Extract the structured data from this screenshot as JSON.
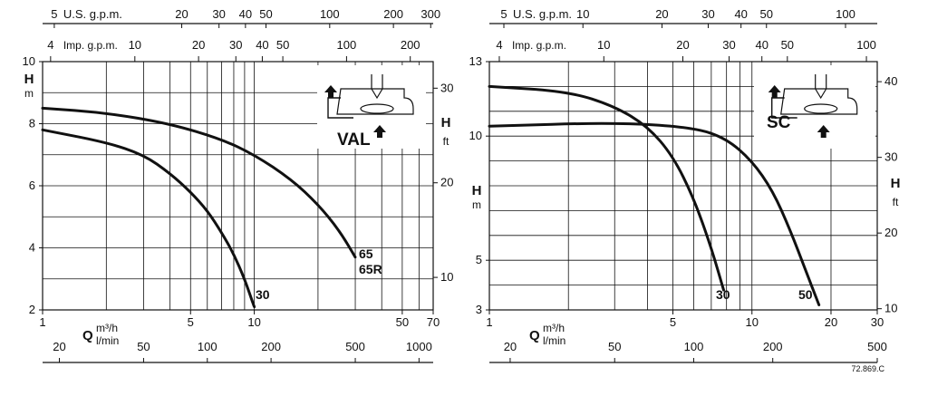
{
  "code": "72.869.C",
  "chart_data": [
    {
      "type": "line",
      "model_label": "VAL",
      "x": {
        "label": "Q",
        "unit": "m³/h",
        "scale": "log",
        "lim": [
          1,
          70
        ],
        "ticks": [
          1,
          5,
          10,
          50,
          70
        ],
        "grid": [
          2,
          3,
          4,
          5,
          6,
          7,
          8,
          9,
          10,
          20,
          30,
          40,
          50,
          60,
          70
        ]
      },
      "y_left": {
        "label": "H",
        "unit": "m",
        "lim": [
          2,
          10
        ],
        "ticks": [
          2,
          4,
          6,
          8,
          10
        ],
        "grid": [
          3,
          4,
          5,
          6,
          7,
          8,
          9
        ]
      },
      "y_right": {
        "label": "H",
        "unit": "ft",
        "ticks": [
          10,
          20,
          30
        ],
        "tick_values_m": [
          3.048,
          6.096,
          9.144
        ]
      },
      "top_scales": [
        {
          "label": "U.S. g.p.m.",
          "ticks": [
            5,
            20,
            30,
            40,
            50,
            100,
            200,
            300
          ],
          "tick_values_m3h": [
            1.1356,
            4.5425,
            6.8137,
            9.085,
            11.356,
            22.712,
            45.425,
            68.137
          ]
        },
        {
          "label": "Imp. g.p.m.",
          "ticks": [
            4,
            10,
            20,
            30,
            40,
            50,
            100,
            200
          ],
          "tick_values_m3h": [
            1.091,
            2.728,
            5.455,
            8.183,
            10.91,
            13.64,
            27.28,
            54.55
          ]
        }
      ],
      "bottom_scale": {
        "label": "l/min",
        "ticks": [
          20,
          50,
          100,
          200,
          500,
          1000
        ],
        "tick_values_m3h": [
          1.2,
          3,
          6,
          12,
          30,
          60
        ]
      },
      "series": [
        {
          "name": "65\n65R",
          "points": [
            [
              1,
              8.5
            ],
            [
              2,
              8.35
            ],
            [
              4,
              8.0
            ],
            [
              7,
              7.5
            ],
            [
              10,
              7.0
            ],
            [
              15,
              6.2
            ],
            [
              20,
              5.4
            ],
            [
              25,
              4.6
            ],
            [
              30,
              3.7
            ]
          ]
        },
        {
          "name": "30",
          "points": [
            [
              1,
              7.8
            ],
            [
              2,
              7.4
            ],
            [
              3,
              7.0
            ],
            [
              4,
              6.4
            ],
            [
              5,
              5.8
            ],
            [
              6,
              5.2
            ],
            [
              7,
              4.5
            ],
            [
              8,
              3.8
            ],
            [
              9,
              3.0
            ],
            [
              10,
              2.1
            ]
          ]
        }
      ]
    },
    {
      "type": "line",
      "model_label": "SC",
      "x": {
        "label": "Q",
        "unit": "m³/h",
        "scale": "log",
        "lim": [
          1,
          30
        ],
        "ticks": [
          1,
          5,
          10,
          20,
          30
        ],
        "grid": [
          2,
          3,
          4,
          5,
          6,
          7,
          8,
          9,
          10,
          20,
          30
        ]
      },
      "y_left": {
        "label": "H",
        "unit": "m",
        "lim": [
          3,
          13
        ],
        "ticks": [
          3,
          5,
          10,
          13
        ],
        "grid": [
          4,
          5,
          6,
          7,
          8,
          9,
          10,
          11,
          12
        ]
      },
      "y_right": {
        "label": "H",
        "unit": "ft",
        "ticks": [
          10,
          20,
          30,
          40
        ],
        "tick_values_m": [
          3.048,
          6.096,
          9.144,
          12.192
        ]
      },
      "top_scales": [
        {
          "label": "U.S. g.p.m.",
          "ticks": [
            5,
            10,
            20,
            30,
            40,
            50,
            100
          ],
          "tick_values_m3h": [
            1.1356,
            2.2712,
            4.5425,
            6.8137,
            9.085,
            11.356,
            22.712
          ]
        },
        {
          "label": "Imp. g.p.m.",
          "ticks": [
            4,
            10,
            20,
            30,
            40,
            50,
            100
          ],
          "tick_values_m3h": [
            1.091,
            2.728,
            5.455,
            8.183,
            10.91,
            13.64,
            27.28
          ]
        }
      ],
      "bottom_scale": {
        "label": "l/min",
        "ticks": [
          20,
          50,
          100,
          200,
          500
        ],
        "tick_values_m3h": [
          1.2,
          3,
          6,
          12,
          30
        ]
      },
      "series": [
        {
          "name": "30",
          "points": [
            [
              1,
              12.0
            ],
            [
              2,
              11.8
            ],
            [
              3,
              11.2
            ],
            [
              4,
              10.4
            ],
            [
              5,
              9.2
            ],
            [
              6,
              7.5
            ],
            [
              7,
              5.5
            ],
            [
              7.8,
              3.8
            ]
          ]
        },
        {
          "name": "50",
          "points": [
            [
              1,
              10.4
            ],
            [
              3,
              10.55
            ],
            [
              6,
              10.35
            ],
            [
              8,
              9.9
            ],
            [
              10,
              9.0
            ],
            [
              12,
              7.8
            ],
            [
              14,
              6.2
            ],
            [
              16,
              4.6
            ],
            [
              18,
              3.2
            ]
          ]
        }
      ]
    }
  ]
}
